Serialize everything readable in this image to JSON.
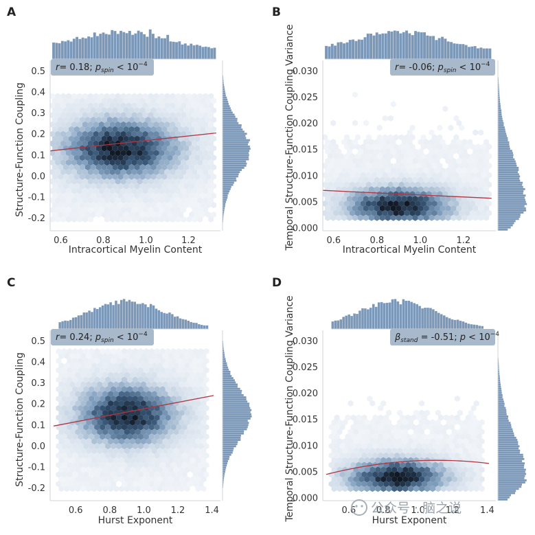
{
  "watermark": "公众号 · 脑之说",
  "chart_data": [
    {
      "panel": "A",
      "type": "hexbin-jointplot",
      "xlabel": "Intracortical Myelin Content",
      "ylabel": "Structure-Function Coupling",
      "xlim": [
        0.55,
        1.35
      ],
      "ylim": [
        -0.26,
        0.55
      ],
      "xticks": [
        "0.6",
        "0.8",
        "1.0",
        "1.2"
      ],
      "yticks": [
        "-0.2",
        "-0.1",
        "0.0",
        "0.1",
        "0.2",
        "0.3",
        "0.4",
        "0.5"
      ],
      "annotation": {
        "stat": "r",
        "value": "= 0.18; ",
        "p": "p",
        "sub": "spin",
        "tail": " < 10",
        "sup": "−4"
      },
      "fit": {
        "type": "linear",
        "x": [
          0.55,
          1.33
        ],
        "y": [
          0.12,
          0.205
        ]
      },
      "density": {
        "xrange": [
          0.56,
          1.33
        ],
        "yrange": [
          -0.2,
          0.38
        ],
        "cx": 0.88,
        "cy": 0.13,
        "sx": 0.19,
        "sy": 0.1,
        "clipx": [
          0.56,
          1.33
        ]
      }
    },
    {
      "panel": "B",
      "type": "hexbin-jointplot",
      "xlabel": "Intracortical Myelin Content",
      "ylabel": "Temporal Structure-Function Coupling Variance",
      "xlim": [
        0.55,
        1.35
      ],
      "ylim": [
        -0.0005,
        0.032
      ],
      "xticks": [
        "0.6",
        "0.8",
        "1.0",
        "1.2"
      ],
      "yticks": [
        "0.000",
        "0.005",
        "0.010",
        "0.015",
        "0.020",
        "0.025",
        "0.030"
      ],
      "annotation": {
        "stat": "r",
        "value": "= -0.06; ",
        "p": "p",
        "sub": "spin",
        "tail": " < 10",
        "sup": "−4"
      },
      "fit": {
        "type": "linear",
        "x": [
          0.55,
          1.33
        ],
        "y": [
          0.0072,
          0.0057
        ]
      },
      "density": {
        "xrange": [
          0.56,
          1.33
        ],
        "yrange": [
          0.0015,
          0.03
        ],
        "cx": 0.9,
        "cy": 0.0042,
        "sx": 0.17,
        "sy": 0.0026,
        "clipx": [
          0.56,
          1.33
        ]
      }
    },
    {
      "panel": "C",
      "type": "hexbin-jointplot",
      "xlabel": "Hurst Exponent",
      "ylabel": "Structure-Function Coupling",
      "xlim": [
        0.45,
        1.45
      ],
      "ylim": [
        -0.26,
        0.55
      ],
      "xticks": [
        "0.6",
        "0.8",
        "1.0",
        "1.2",
        "1.4"
      ],
      "yticks": [
        "-0.2",
        "-0.1",
        "0.0",
        "0.1",
        "0.2",
        "0.3",
        "0.4",
        "0.5"
      ],
      "annotation": {
        "stat": "r",
        "value": "= 0.24; ",
        "p": "p",
        "sub": "spin",
        "tail": " < 10",
        "sup": "−4"
      },
      "fit": {
        "type": "linear",
        "x": [
          0.47,
          1.41
        ],
        "y": [
          0.095,
          0.24
        ]
      },
      "density": {
        "xrange": [
          0.5,
          1.38
        ],
        "yrange": [
          -0.2,
          0.45
        ],
        "cx": 0.9,
        "cy": 0.15,
        "sx": 0.2,
        "sy": 0.1,
        "clipx": [
          0.5,
          1.38
        ]
      }
    },
    {
      "panel": "D",
      "type": "hexbin-jointplot",
      "xlabel": "Hurst Exponent",
      "ylabel": "Temporal Structure-Function Coupling Variance",
      "xlim": [
        0.45,
        1.45
      ],
      "ylim": [
        -0.0005,
        0.032
      ],
      "xticks": [
        "0.6",
        "0.8",
        "1.0",
        "1.2",
        "1.4"
      ],
      "yticks": [
        "0.000",
        "0.005",
        "0.010",
        "0.015",
        "0.020",
        "0.025",
        "0.030"
      ],
      "annotation": {
        "stat": "β",
        "statsub": "stand",
        "value": " = -0.51; ",
        "p": "p",
        "sub": "",
        "tail": " < 10",
        "sup": "−4"
      },
      "fit": {
        "type": "quadratic",
        "x": [
          0.47,
          1.1,
          1.41
        ],
        "y": [
          0.0045,
          0.0072,
          0.0066
        ]
      },
      "density": {
        "xrange": [
          0.5,
          1.38
        ],
        "yrange": [
          0.0015,
          0.028
        ],
        "cx": 0.88,
        "cy": 0.004,
        "sx": 0.2,
        "sy": 0.0024,
        "clipx": [
          0.5,
          1.38
        ]
      }
    }
  ]
}
